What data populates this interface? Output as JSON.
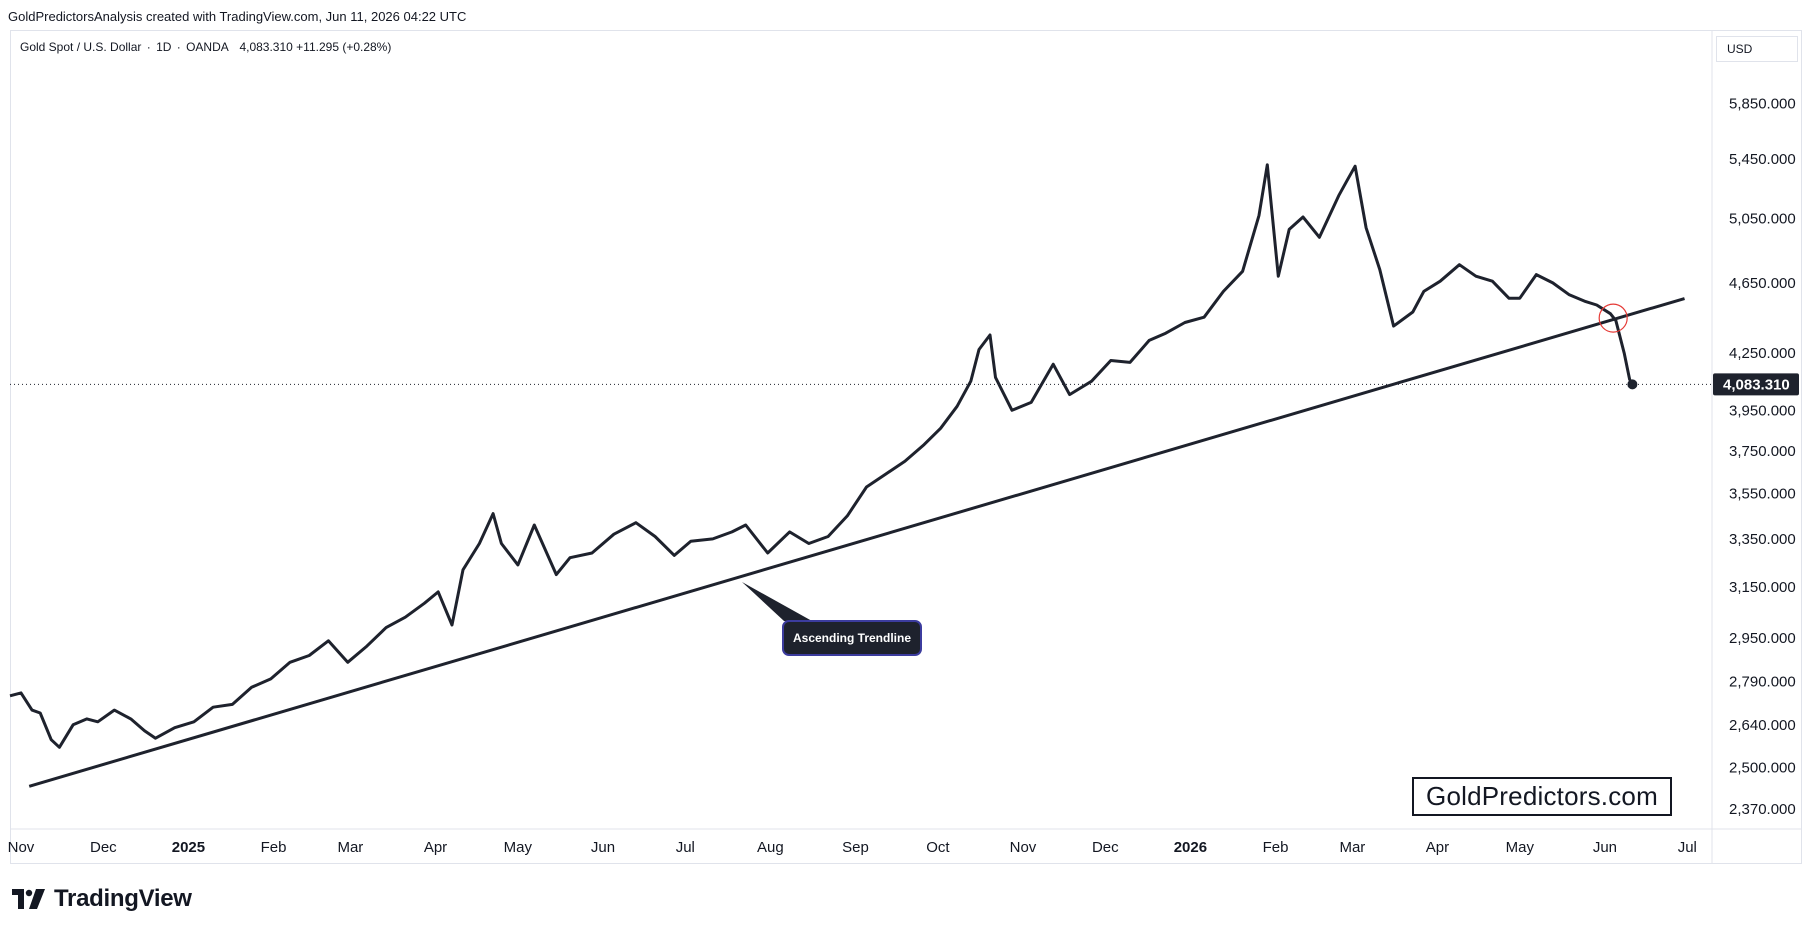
{
  "header": {
    "attribution": "GoldPredictorsAnalysis created with TradingView.com, Jun 11, 2026 04:22 UTC"
  },
  "legend": {
    "symbol": "Gold Spot / U.S. Dollar",
    "interval": "1D",
    "source": "OANDA",
    "last": "4,083.310",
    "change": "+11.295 (+0.28%)"
  },
  "currency_label": "USD",
  "watermark": "GoldPredictors.com",
  "footer": {
    "brand": "TradingView",
    "logo_icon": "tradingview-logo-icon"
  },
  "colors": {
    "line": "#1e222d",
    "price_tag_bg": "#1e222d",
    "callout_bg": "#1e222d",
    "callout_border": "#3c3c9e",
    "break_marker": "#e53935"
  },
  "chart_data": {
    "type": "line",
    "title": "",
    "series": [
      {
        "x": [
          "2024-10-28",
          "2024-11-01",
          "2024-11-05",
          "2024-11-08",
          "2024-11-12",
          "2024-11-15",
          "2024-11-20",
          "2024-11-25",
          "2024-11-29",
          "2024-12-05",
          "2024-12-11",
          "2024-12-16",
          "2024-12-20",
          "2024-12-27",
          "2025-01-03",
          "2025-01-10",
          "2025-01-17",
          "2025-01-24",
          "2025-01-31",
          "2025-02-07",
          "2025-02-14",
          "2025-02-21",
          "2025-02-28",
          "2025-03-07",
          "2025-03-14",
          "2025-03-21",
          "2025-03-28",
          "2025-04-02",
          "2025-04-07",
          "2025-04-11",
          "2025-04-17",
          "2025-04-22",
          "2025-04-25",
          "2025-05-01",
          "2025-05-07",
          "2025-05-15",
          "2025-05-20",
          "2025-05-28",
          "2025-06-05",
          "2025-06-13",
          "2025-06-20",
          "2025-06-27",
          "2025-07-03",
          "2025-07-11",
          "2025-07-18",
          "2025-07-23",
          "2025-07-31",
          "2025-08-08",
          "2025-08-15",
          "2025-08-22",
          "2025-08-29",
          "2025-09-05",
          "2025-09-12",
          "2025-09-19",
          "2025-09-26",
          "2025-10-02",
          "2025-10-08",
          "2025-10-13",
          "2025-10-16",
          "2025-10-20",
          "2025-10-22",
          "2025-10-28",
          "2025-11-04",
          "2025-11-12",
          "2025-11-18",
          "2025-11-26",
          "2025-12-03",
          "2025-12-10",
          "2025-12-17",
          "2025-12-23",
          "2025-12-30",
          "2026-01-06",
          "2026-01-13",
          "2026-01-20",
          "2026-01-26",
          "2026-01-29",
          "2026-02-02",
          "2026-02-06",
          "2026-02-11",
          "2026-02-17",
          "2026-02-24",
          "2026-02-27",
          "2026-03-02",
          "2026-03-06",
          "2026-03-11",
          "2026-03-16",
          "2026-03-23",
          "2026-03-27",
          "2026-04-02",
          "2026-04-09",
          "2026-04-15",
          "2026-04-21",
          "2026-04-27",
          "2026-05-01",
          "2026-05-07",
          "2026-05-13",
          "2026-05-19",
          "2026-05-25",
          "2026-05-29",
          "2026-06-03",
          "2026-06-05",
          "2026-06-08",
          "2026-06-10",
          "2026-06-11"
        ],
        "y": [
          2740,
          2750,
          2690,
          2680,
          2590,
          2565,
          2640,
          2660,
          2650,
          2690,
          2660,
          2620,
          2595,
          2630,
          2650,
          2700,
          2710,
          2770,
          2800,
          2860,
          2885,
          2940,
          2860,
          2920,
          2990,
          3030,
          3085,
          3130,
          3000,
          3220,
          3330,
          3460,
          3330,
          3240,
          3410,
          3200,
          3270,
          3290,
          3370,
          3420,
          3360,
          3280,
          3340,
          3350,
          3380,
          3410,
          3290,
          3380,
          3330,
          3360,
          3450,
          3580,
          3640,
          3700,
          3780,
          3860,
          3970,
          4100,
          4270,
          4350,
          4120,
          3950,
          3990,
          4190,
          4030,
          4100,
          4210,
          4200,
          4320,
          4360,
          4420,
          4450,
          4600,
          4720,
          5070,
          5410,
          4690,
          4980,
          5060,
          4930,
          5200,
          5300,
          5400,
          4990,
          4730,
          4400,
          4480,
          4600,
          4660,
          4760,
          4690,
          4660,
          4560,
          4560,
          4700,
          4650,
          4580,
          4540,
          4520,
          4470,
          4430,
          4250,
          4110,
          4083.31
        ]
      }
    ],
    "trendline": {
      "label": "Ascending Trendline",
      "start": {
        "x": "2024-11-04",
        "y": 2440
      },
      "end": {
        "x": "2026-06-30",
        "y": 4558
      }
    },
    "break_marker": {
      "x": "2026-06-04",
      "y": 4445
    },
    "last_price": 4083.31,
    "last_price_label": "4,083.310",
    "y_ticks": [
      {
        "value": 2370,
        "label": "2,370.000"
      },
      {
        "value": 2500,
        "label": "2,500.000"
      },
      {
        "value": 2640,
        "label": "2,640.000"
      },
      {
        "value": 2790,
        "label": "2,790.000"
      },
      {
        "value": 2950,
        "label": "2,950.000"
      },
      {
        "value": 3150,
        "label": "3,150.000"
      },
      {
        "value": 3350,
        "label": "3,350.000"
      },
      {
        "value": 3550,
        "label": "3,550.000"
      },
      {
        "value": 3750,
        "label": "3,750.000"
      },
      {
        "value": 3950,
        "label": "3,950.000"
      },
      {
        "value": 4250,
        "label": "4,250.000"
      },
      {
        "value": 4650,
        "label": "4,650.000"
      },
      {
        "value": 5050,
        "label": "5,050.000"
      },
      {
        "value": 5450,
        "label": "5,450.000"
      },
      {
        "value": 5850,
        "label": "5,850.000"
      }
    ],
    "x_ticks": [
      {
        "date": "2024-11-01",
        "label": "Nov"
      },
      {
        "date": "2024-12-01",
        "label": "Dec"
      },
      {
        "date": "2025-01-01",
        "label": "2025",
        "bold": true
      },
      {
        "date": "2025-02-01",
        "label": "Feb"
      },
      {
        "date": "2025-03-01",
        "label": "Mar"
      },
      {
        "date": "2025-04-01",
        "label": "Apr"
      },
      {
        "date": "2025-05-01",
        "label": "May"
      },
      {
        "date": "2025-06-01",
        "label": "Jun"
      },
      {
        "date": "2025-07-01",
        "label": "Jul"
      },
      {
        "date": "2025-08-01",
        "label": "Aug"
      },
      {
        "date": "2025-09-01",
        "label": "Sep"
      },
      {
        "date": "2025-10-01",
        "label": "Oct"
      },
      {
        "date": "2025-11-01",
        "label": "Nov"
      },
      {
        "date": "2025-12-01",
        "label": "Dec"
      },
      {
        "date": "2026-01-01",
        "label": "2026",
        "bold": true
      },
      {
        "date": "2026-02-01",
        "label": "Feb"
      },
      {
        "date": "2026-03-01",
        "label": "Mar"
      },
      {
        "date": "2026-04-01",
        "label": "Apr"
      },
      {
        "date": "2026-05-01",
        "label": "May"
      },
      {
        "date": "2026-06-01",
        "label": "Jun"
      },
      {
        "date": "2026-07-01",
        "label": "Jul"
      }
    ],
    "y_scale": "log",
    "xlim": [
      "2024-10-28",
      "2026-07-10"
    ],
    "grid": false,
    "legend": "none"
  }
}
